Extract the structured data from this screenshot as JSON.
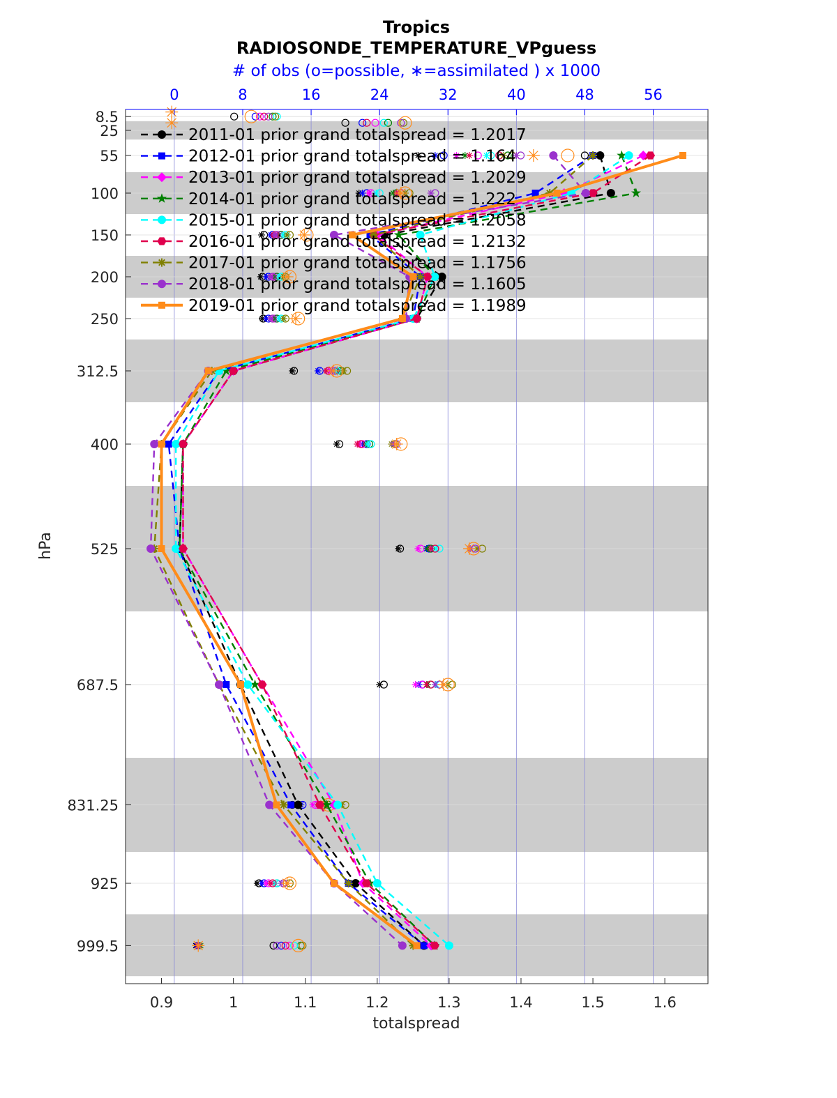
{
  "chart_data": {
    "type": "line",
    "title": "Tropics",
    "subtitle": "RADIOSONDE_TEMPERATURE_VPguess",
    "top_axis_label": "# of obs (o=possible, ∗=assimilated ) x 1000",
    "xlabel": "totalspread",
    "ylabel": "hPa",
    "xlim": [
      0.85,
      1.66
    ],
    "x_ticks": [
      "0.9",
      "1",
      "1.1",
      "1.2",
      "1.3",
      "1.4",
      "1.5",
      "1.6"
    ],
    "top_xlim": [
      -5.7,
      62.4
    ],
    "top_ticks": [
      "0",
      "8",
      "16",
      "24",
      "32",
      "40",
      "48",
      "56"
    ],
    "levels": [
      "8.5",
      "25",
      "55",
      "100",
      "150",
      "200",
      "250",
      "312.5",
      "400",
      "525",
      "687.5",
      "831.25",
      "925",
      "999.5"
    ],
    "level_values": [
      8.5,
      25,
      55,
      100,
      150,
      200,
      250,
      312.5,
      400,
      525,
      687.5,
      831.25,
      925,
      999.5
    ],
    "grey_bands_hpa": [
      [
        14,
        36
      ],
      [
        75,
        125
      ],
      [
        175,
        225
      ],
      [
        275,
        350
      ],
      [
        450,
        600
      ],
      [
        775,
        887.5
      ],
      [
        962,
        1036
      ]
    ],
    "legend_position": "top-left",
    "series": [
      {
        "name": "2011-01 prior grand totalspread = 1.2017",
        "color": "#000000",
        "marker": "circle",
        "style": "dashed",
        "values": [
          null,
          null,
          1.51,
          1.525,
          1.21,
          1.29,
          1.255,
          1.0,
          0.93,
          0.925,
          1.01,
          1.09,
          1.17,
          1.265
        ],
        "obs_possible": [
          7.0,
          20.0,
          48.0,
          49.0,
          10.5,
          10.3,
          10.4,
          14.0,
          19.3,
          26.4,
          24.5,
          13.8,
          9.9,
          11.6
        ],
        "obs_assimilated": [
          null,
          null,
          28.5,
          21.6,
          10.2,
          10.1,
          10.3,
          13.8,
          19.0,
          26.2,
          24.0,
          13.6,
          9.7,
          2.5
        ]
      },
      {
        "name": "2012-01 prior grand totalspread = 1.164",
        "color": "#0000ff",
        "marker": "square",
        "style": "dashed",
        "values": [
          null,
          null,
          1.5,
          1.42,
          1.19,
          1.26,
          1.25,
          0.98,
          0.91,
          0.925,
          0.99,
          1.08,
          1.16,
          1.265
        ],
        "obs_possible": [
          9.5,
          22.0,
          31.5,
          22.5,
          11.5,
          11.0,
          11.0,
          17.0,
          22.5,
          29.8,
          29.0,
          15.0,
          10.5,
          12.5
        ],
        "obs_assimilated": [
          null,
          null,
          30.5,
          22.0,
          11.3,
          10.8,
          10.8,
          16.8,
          22.0,
          29.5,
          28.6,
          14.8,
          10.3,
          2.6
        ]
      },
      {
        "name": "2013-01 prior grand totalspread = 1.2029",
        "color": "#ff00ff",
        "marker": "diamond",
        "style": "dashed",
        "values": [
          null,
          null,
          1.57,
          1.46,
          1.2,
          1.27,
          1.255,
          1.0,
          0.93,
          0.93,
          1.04,
          1.14,
          1.18,
          1.275
        ],
        "obs_possible": [
          10.0,
          23.5,
          35.5,
          23.0,
          12.3,
          11.8,
          11.8,
          18.5,
          22.0,
          28.8,
          29.0,
          16.5,
          11.0,
          13.5
        ],
        "obs_assimilated": [
          null,
          null,
          33.0,
          22.8,
          12.0,
          11.6,
          11.6,
          18.2,
          21.6,
          28.5,
          28.2,
          16.2,
          10.8,
          2.8
        ]
      },
      {
        "name": "2014-01 prior grand totalspread = 1.222",
        "color": "#008000",
        "marker": "star",
        "style": "dashed",
        "values": [
          null,
          null,
          1.54,
          1.56,
          1.23,
          1.28,
          1.255,
          0.99,
          0.93,
          0.925,
          1.03,
          1.13,
          1.19,
          1.28
        ],
        "obs_possible": [
          11.5,
          25.0,
          39.0,
          26.0,
          12.5,
          12.0,
          12.0,
          19.5,
          22.8,
          30.0,
          30.0,
          18.0,
          12.0,
          14.8
        ],
        "obs_assimilated": [
          null,
          null,
          34.0,
          25.6,
          12.3,
          11.8,
          11.8,
          19.2,
          22.4,
          29.6,
          29.6,
          17.6,
          11.8,
          3.0
        ]
      },
      {
        "name": "2015-01 prior grand totalspread = 1.2058",
        "color": "#00ffff",
        "marker": "circle",
        "style": "dashed",
        "values": [
          null,
          null,
          1.55,
          1.47,
          1.26,
          1.28,
          1.25,
          0.98,
          0.92,
          0.92,
          1.02,
          1.145,
          1.2,
          1.3
        ],
        "obs_possible": [
          12.0,
          24.5,
          37.0,
          24.0,
          13.0,
          12.5,
          12.5,
          19.0,
          23.0,
          31.0,
          31.0,
          19.0,
          12.0,
          14.0
        ],
        "obs_assimilated": [
          null,
          null,
          36.5,
          23.6,
          12.8,
          12.3,
          12.3,
          18.8,
          22.6,
          30.6,
          30.6,
          18.6,
          11.8,
          3.1
        ]
      },
      {
        "name": "2016-01 prior grand totalspread = 1.2132",
        "color": "#e0004d",
        "marker": "hexagon",
        "style": "dashed",
        "values": [
          null,
          null,
          1.58,
          1.5,
          1.195,
          1.27,
          1.255,
          1.0,
          0.93,
          0.93,
          1.04,
          1.12,
          1.185,
          1.28
        ],
        "obs_possible": [
          10.5,
          22.5,
          38.0,
          26.5,
          11.8,
          11.5,
          11.5,
          18.0,
          21.8,
          30.5,
          30.0,
          17.5,
          11.5,
          13.0
        ],
        "obs_assimilated": [
          null,
          null,
          34.5,
          26.0,
          11.6,
          11.3,
          11.3,
          17.8,
          21.4,
          30.0,
          29.5,
          17.2,
          11.3,
          2.7
        ]
      },
      {
        "name": "2017-01 prior grand totalspread = 1.1756",
        "color": "#808000",
        "marker": "asterisk",
        "style": "dashed",
        "values": [
          null,
          null,
          1.5,
          1.44,
          1.195,
          1.26,
          1.235,
          0.97,
          0.9,
          0.89,
          0.98,
          1.07,
          1.16,
          1.25
        ],
        "obs_possible": [
          11.8,
          26.8,
          39.5,
          27.5,
          13.5,
          13.0,
          13.0,
          20.2,
          25.8,
          36.0,
          32.5,
          20.0,
          13.5,
          15.0
        ],
        "obs_assimilated": [
          null,
          null,
          38.5,
          27.0,
          13.2,
          12.8,
          12.8,
          19.8,
          25.4,
          35.4,
          32.0,
          19.6,
          13.2,
          3.1
        ]
      },
      {
        "name": "2018-01 prior grand totalspread = 1.1605",
        "color": "#9a32cd",
        "marker": "circle",
        "style": "dashed",
        "values": [
          null,
          null,
          1.445,
          1.49,
          1.14,
          1.245,
          1.24,
          0.965,
          0.89,
          0.885,
          0.98,
          1.05,
          1.14,
          1.235
        ],
        "obs_possible": [
          11.0,
          26.5,
          40.5,
          30.5,
          12.0,
          11.5,
          11.5,
          18.8,
          26.0,
          35.2,
          31.0,
          17.0,
          12.8,
          12.0
        ],
        "obs_assimilated": [
          null,
          null,
          40.0,
          30.0,
          11.8,
          11.3,
          11.3,
          18.5,
          25.6,
          34.6,
          30.5,
          16.8,
          12.5,
          2.9
        ]
      },
      {
        "name": "2019-01 prior grand totalspread = 1.1989",
        "color": "#ff8c1a",
        "marker": "square",
        "style": "solid",
        "values": [
          null,
          null,
          1.625,
          1.45,
          1.165,
          1.25,
          1.235,
          0.965,
          0.9,
          0.9,
          1.01,
          1.06,
          1.14,
          1.255
        ],
        "obs_possible": [
          9.0,
          27.0,
          46.0,
          27.0,
          15.5,
          13.5,
          14.5,
          19.0,
          26.5,
          35.0,
          32.0,
          18.0,
          13.5,
          14.5
        ],
        "obs_assimilated": [
          -0.3,
          -0.3,
          42.0,
          26.5,
          15.2,
          13.2,
          14.2,
          18.6,
          26.0,
          34.5,
          31.5,
          17.6,
          13.2,
          2.8
        ]
      }
    ]
  }
}
